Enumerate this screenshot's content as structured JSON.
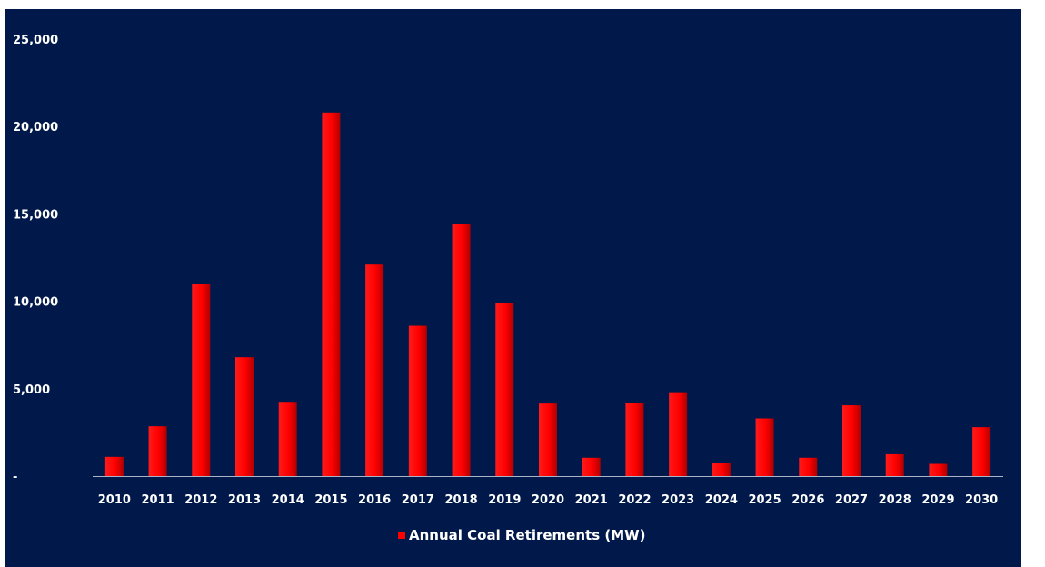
{
  "chart_data": {
    "type": "bar",
    "categories": [
      "2010",
      "2011",
      "2012",
      "2013",
      "2014",
      "2015",
      "2016",
      "2017",
      "2018",
      "2019",
      "2020",
      "2021",
      "2022",
      "2023",
      "2024",
      "2025",
      "2026",
      "2027",
      "2028",
      "2029",
      "2030"
    ],
    "series": [
      {
        "name": "Annual Coal Retirements (MW)",
        "values": [
          1100,
          2850,
          11000,
          6800,
          4250,
          20800,
          12100,
          8600,
          14400,
          9900,
          4150,
          1050,
          4200,
          4800,
          750,
          3300,
          1050,
          4050,
          1250,
          700,
          2800
        ]
      }
    ],
    "ylim": [
      0,
      25000
    ],
    "yticks": [
      0,
      5000,
      10000,
      15000,
      20000,
      25000
    ],
    "ytick_labels": [
      "-",
      "5,000",
      "10,000",
      "15,000",
      "20,000",
      "25,000"
    ],
    "legend_position": "bottom",
    "grid": false,
    "colors": {
      "background": "#00194a",
      "bar": "#ff0000",
      "bar_dark": "#b00000",
      "axis": "#aab4c8",
      "text": "#ffffff"
    }
  }
}
